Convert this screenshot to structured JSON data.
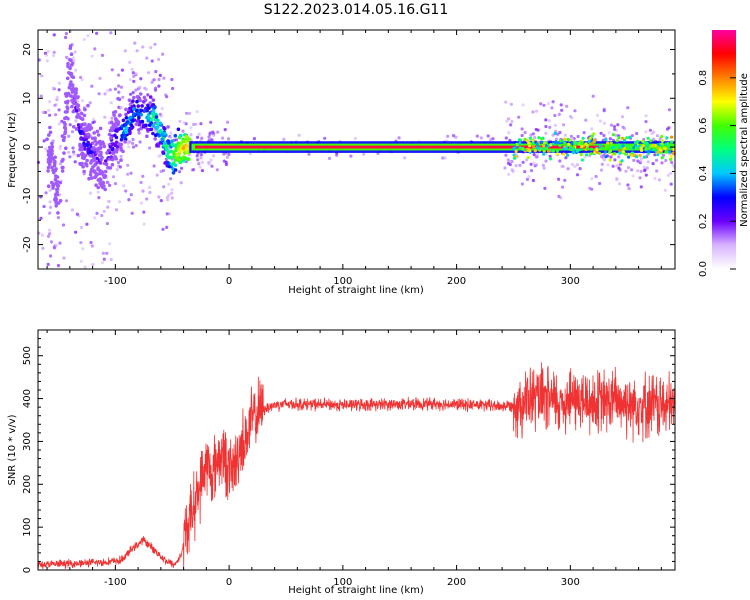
{
  "figure": {
    "title": "S122.2023.014.05.16.G11"
  },
  "chart_data": [
    {
      "type": "heatmap",
      "name": "spectrogram",
      "xlabel": "Height of straight line (km)",
      "ylabel": "Frequency (Hz)",
      "xlim": [
        -168,
        392
      ],
      "ylim": [
        -25,
        24
      ],
      "xticks": [
        -100,
        0,
        100,
        200,
        300
      ],
      "yticks": [
        -20,
        -10,
        0,
        10,
        20
      ],
      "xtick_labels": [
        "-100",
        "0",
        "100",
        "200",
        "300"
      ],
      "ytick_labels": [
        "-20",
        "-10",
        "0",
        "10",
        "20"
      ],
      "grid": false,
      "carrier_line": {
        "x_start": -30,
        "x_end": 392,
        "frequency": 0
      },
      "description_points": [
        {
          "x": -165,
          "f": 5,
          "amp": 0.1
        },
        {
          "x": -150,
          "f": -10,
          "amp": 0.1
        },
        {
          "x": -140,
          "f": 15,
          "amp": 0.1
        },
        {
          "x": -130,
          "f": 2,
          "amp": 0.3
        },
        {
          "x": -110,
          "f": -4,
          "amp": 0.2
        },
        {
          "x": -100,
          "f": 2,
          "amp": 0.3
        },
        {
          "x": -90,
          "f": 4,
          "amp": 0.45
        },
        {
          "x": -82,
          "f": 8,
          "amp": 0.35
        },
        {
          "x": -75,
          "f": 6,
          "amp": 0.4
        },
        {
          "x": -66,
          "f": 6,
          "amp": 0.5
        },
        {
          "x": -60,
          "f": 3,
          "amp": 0.45
        },
        {
          "x": -52,
          "f": -2,
          "amp": 0.55
        },
        {
          "x": -45,
          "f": -1,
          "amp": 0.7
        },
        {
          "x": -38,
          "f": 0,
          "amp": 0.75
        },
        {
          "x": 0,
          "f": 0,
          "amp": 0.95
        },
        {
          "x": 100,
          "f": 0,
          "amp": 0.95
        },
        {
          "x": 200,
          "f": 0,
          "amp": 0.95
        },
        {
          "x": 255,
          "f": 0,
          "amp": 0.85
        },
        {
          "x": 300,
          "f": 0,
          "amp": 0.75
        },
        {
          "x": 340,
          "f": 0,
          "amp": 0.5
        },
        {
          "x": 380,
          "f": 0,
          "amp": 0.45
        }
      ]
    },
    {
      "type": "line",
      "name": "snr",
      "xlabel": "Height of straight line (km)",
      "ylabel": "SNR (10 * v/v)",
      "xlim": [
        -168,
        392
      ],
      "ylim": [
        0,
        560
      ],
      "xticks": [
        -100,
        0,
        100,
        200,
        300
      ],
      "yticks": [
        0,
        100,
        200,
        300,
        400,
        500
      ],
      "xtick_labels": [
        "-100",
        "0",
        "100",
        "200",
        "300"
      ],
      "ytick_labels": [
        "0",
        "100",
        "200",
        "300",
        "400",
        "500"
      ],
      "grid": false,
      "color": "#f03232",
      "series": [
        {
          "x": [
            -168,
            -150,
            -130,
            -110,
            -95,
            -85,
            -75,
            -65,
            -55,
            -48,
            -42,
            -38,
            -32,
            -25,
            -20,
            -15,
            -10,
            -5,
            0,
            5,
            10,
            15,
            20,
            25,
            30,
            40,
            50,
            60,
            80,
            100,
            120,
            150,
            180,
            200,
            220,
            240,
            250,
            260,
            270,
            280,
            290,
            300,
            310,
            320,
            330,
            340,
            350,
            360,
            370,
            380,
            392
          ],
          "y": [
            12,
            14,
            16,
            18,
            22,
            50,
            70,
            45,
            20,
            12,
            35,
            90,
            140,
            200,
            250,
            220,
            260,
            270,
            230,
            240,
            290,
            310,
            350,
            365,
            375,
            385,
            388,
            387,
            386,
            385,
            386,
            387,
            388,
            386,
            385,
            382,
            385,
            395,
            400,
            395,
            390,
            400,
            395,
            390,
            392,
            395,
            390,
            388,
            385,
            382,
            380
          ]
        }
      ],
      "spread": [
        {
          "x_from": -168,
          "x_to": -40,
          "amplitude": 10
        },
        {
          "x_from": -40,
          "x_to": 30,
          "amplitude": 80
        },
        {
          "x_from": 30,
          "x_to": 250,
          "amplitude": 15
        },
        {
          "x_from": 250,
          "x_to": 392,
          "amplitude": 80
        }
      ]
    }
  ],
  "colorbar": {
    "label": "Normalized spectral amplitude",
    "range": [
      0,
      1
    ],
    "ticks": [
      0.0,
      0.2,
      0.4,
      0.6,
      0.8
    ],
    "tick_labels": [
      "0.0",
      "0.2",
      "0.4",
      "0.6",
      "0.8"
    ],
    "colors": [
      "#ffffff",
      "#d8b4ff",
      "#6a00ff",
      "#0000ff",
      "#00c8ff",
      "#00ff80",
      "#40ff00",
      "#ffff00",
      "#ff8000",
      "#ff0000",
      "#ff00a0"
    ]
  }
}
